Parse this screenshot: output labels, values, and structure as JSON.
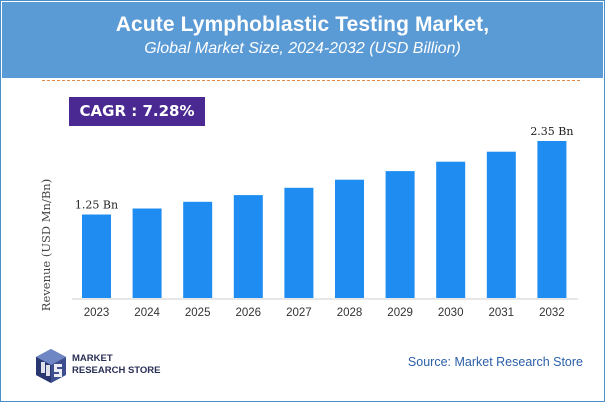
{
  "header": {
    "title": "Acute Lymphoblastic Testing Market,",
    "subtitle": "Global Market Size, 2024-2032 (USD Billion)"
  },
  "cagr_label": "CAGR :  7.28%",
  "source": "Source: Market Research Store",
  "logo": {
    "line1": "MARKET",
    "line2": "RESEARCH STORE"
  },
  "colors": {
    "header_bg": "#5b9bd5",
    "bar": "#1e8cf0",
    "cagr_bg": "#4a2a92"
  },
  "chart_data": {
    "type": "bar",
    "categories": [
      "2023",
      "2024",
      "2025",
      "2026",
      "2027",
      "2028",
      "2029",
      "2030",
      "2031",
      "2032"
    ],
    "values": [
      1.25,
      1.34,
      1.44,
      1.54,
      1.65,
      1.77,
      1.9,
      2.04,
      2.19,
      2.35
    ],
    "ylabel": "Revenue (USD Mn/Bn)",
    "data_labels": [
      {
        "index": 0,
        "text": "1.25 Bn"
      },
      {
        "index": 9,
        "text": "2.35 Bn"
      }
    ],
    "ylim": [
      0,
      2.35
    ],
    "grid": false
  }
}
